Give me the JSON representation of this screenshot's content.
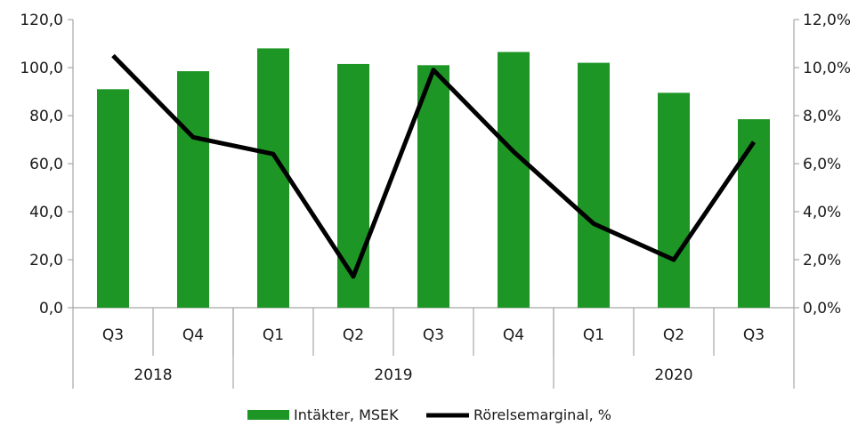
{
  "chart_data": {
    "type": "bar",
    "categories": [
      "Q3",
      "Q4",
      "Q1",
      "Q2",
      "Q3",
      "Q4",
      "Q1",
      "Q2",
      "Q3"
    ],
    "groups": [
      {
        "label": "2018",
        "count": 2
      },
      {
        "label": "2019",
        "count": 4
      },
      {
        "label": "2020",
        "count": 3
      }
    ],
    "series": [
      {
        "name": "Intäkter, MSEK",
        "type": "bar",
        "axis": "left",
        "color": "#1e9626",
        "values": [
          91.0,
          98.5,
          108.0,
          101.5,
          101.0,
          106.5,
          102.0,
          89.5,
          78.5
        ]
      },
      {
        "name": "Rörelsemarginal, %",
        "type": "line",
        "axis": "right",
        "color": "#000000",
        "values": [
          10.5,
          7.1,
          6.4,
          1.3,
          9.9,
          6.5,
          3.5,
          2.0,
          6.9
        ]
      }
    ],
    "y_left": {
      "min": 0,
      "max": 120,
      "step": 20,
      "tick_labels": [
        "0,0",
        "20,0",
        "40,0",
        "60,0",
        "80,0",
        "100,0",
        "120,0"
      ]
    },
    "y_right": {
      "min": 0,
      "max": 12,
      "step": 2,
      "tick_labels": [
        "0,0%",
        "2,0%",
        "4,0%",
        "6,0%",
        "8,0%",
        "10,0%",
        "12,0%"
      ]
    },
    "grid": false,
    "legend_position": "bottom-center"
  }
}
